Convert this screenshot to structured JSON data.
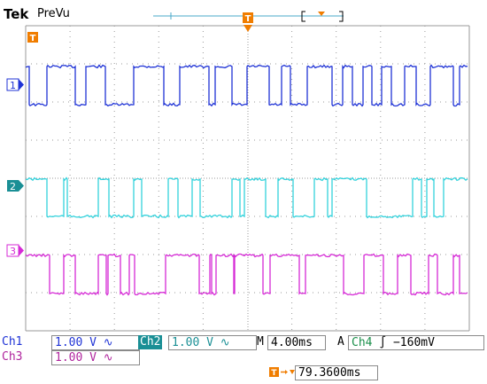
{
  "header": {
    "brand": "Tek",
    "mode": "PreVu"
  },
  "trigger_marker": {
    "label": "T"
  },
  "channels": [
    {
      "id": "1",
      "name": "Ch1",
      "scale": "1.00 V",
      "coupling": "∿",
      "color": "#1f33d6"
    },
    {
      "id": "2",
      "name": "Ch2",
      "scale": "1.00 V",
      "coupling": "∿",
      "color": "#33d2dc"
    },
    {
      "id": "3",
      "name": "Ch3",
      "scale": "1.00 V",
      "coupling": "∿",
      "color": "#d62ad6"
    }
  ],
  "timebase": {
    "prefix": "M",
    "value": "4.00ms"
  },
  "trigger": {
    "prefix": "A",
    "source": "Ch4",
    "slope": "∫",
    "level": "−160mV"
  },
  "trigger_position": {
    "value": "79.3600ms"
  },
  "colors": {
    "grid": "#9a9a9a",
    "marker": "#f07d00",
    "ch1": "#1f33d6",
    "ch2": "#33d2dc",
    "ch3": "#d62ad6"
  },
  "waveforms": {
    "ch1": {
      "edges": [
        33,
        53,
        85,
        97,
        119,
        151,
        185,
        203,
        236,
        243,
        262,
        279,
        304,
        318,
        328,
        347,
        375,
        387,
        398,
        410,
        420,
        431,
        442,
        457,
        470,
        486,
        512,
        519
      ]
    },
    "ch2": {
      "edges": [
        53,
        72,
        76,
        111,
        123,
        151,
        160,
        190,
        201,
        217,
        226,
        262,
        271,
        276,
        300,
        314,
        331,
        355,
        370,
        375,
        414,
        466,
        476,
        482,
        490,
        501
      ]
    },
    "ch3": {
      "edges": [
        56,
        72,
        85,
        111,
        120,
        122,
        136,
        146,
        152,
        187,
        225,
        237,
        239,
        244,
        264,
        265,
        297,
        305,
        338,
        345,
        388,
        411,
        433,
        449,
        464,
        484,
        494,
        512,
        519
      ]
    }
  }
}
